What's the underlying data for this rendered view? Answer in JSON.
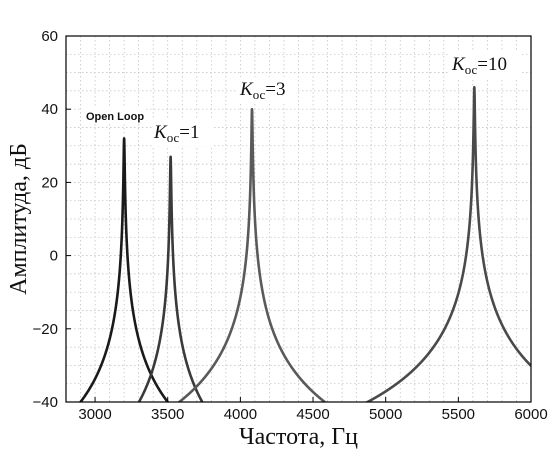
{
  "chart_data": {
    "type": "line",
    "xlabel": "Частота,  Гц",
    "ylabel": "Амплитуда,  дБ",
    "xlim": [
      2800,
      6000
    ],
    "ylim": [
      -40,
      60
    ],
    "x_ticks": [
      3000,
      3500,
      4000,
      4500,
      5000,
      5500,
      6000
    ],
    "y_ticks": [
      -40,
      -20,
      0,
      20,
      40,
      60
    ],
    "y_tick_labels": [
      "−40",
      "−20",
      "0",
      "20",
      "40",
      "60"
    ],
    "grid": true,
    "series": [
      {
        "peak_freq": 3200,
        "peak_db": 32,
        "color": "#1a1a1a",
        "annotation": "Open Loop"
      },
      {
        "peak_freq": 3520,
        "peak_db": 27,
        "color": "#3a3a3a",
        "annotation": "K_oc=1"
      },
      {
        "peak_freq": 4080,
        "peak_db": 40,
        "color": "#5a5a5a",
        "annotation": "K_oc=3"
      },
      {
        "peak_freq": 5610,
        "peak_db": 46,
        "color": "#4a4a4a",
        "annotation": "K_oc=10"
      }
    ],
    "annotations": [
      {
        "text": "Open Loop"
      },
      {
        "italic": "K",
        "sub": "ос",
        "rest": "=1"
      },
      {
        "italic": "K",
        "sub": "ос",
        "rest": "=3"
      },
      {
        "italic": "K",
        "sub": "ос",
        "rest": "=10"
      }
    ]
  }
}
